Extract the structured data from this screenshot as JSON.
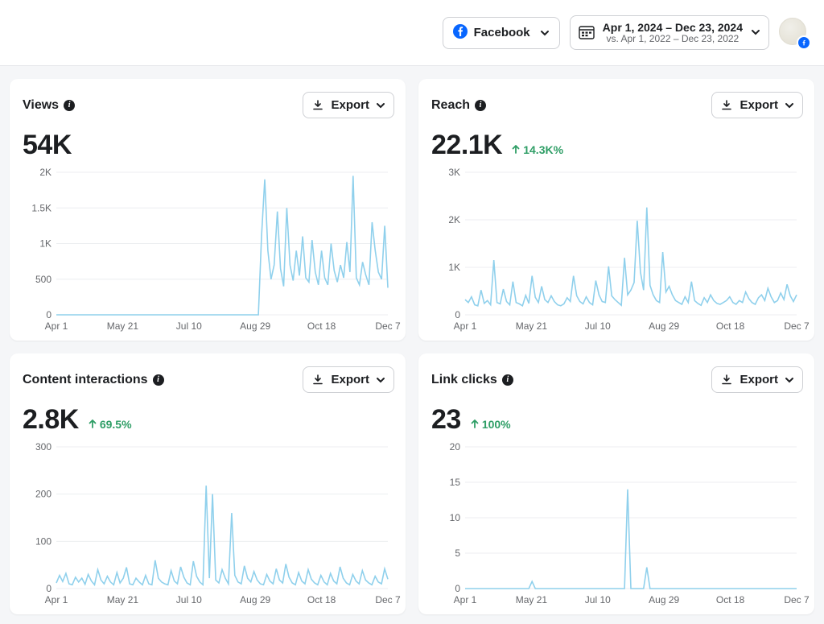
{
  "topbar": {
    "platform_label": "Facebook",
    "brand_color": "#0866ff",
    "date_primary": "Apr 1, 2024 – Dec 23, 2024",
    "date_secondary": "vs. Apr 1, 2022 – Dec 23, 2022"
  },
  "common": {
    "export_label": "Export",
    "text_muted": "#65676b",
    "card_bg": "#ffffff",
    "page_bg": "#f5f6f8",
    "border": "#ced0d4",
    "grid_color": "#eceef0",
    "line_color": "#8fd0ec",
    "delta_up_color": "#2f9e66",
    "x_ticks": [
      "Apr 1",
      "May 21",
      "Jul 10",
      "Aug 29",
      "Oct 18",
      "Dec 7"
    ]
  },
  "panels": [
    {
      "key": "views",
      "title": "Views",
      "metric": "54K",
      "delta": null,
      "y_ticks": [
        "0",
        "500",
        "1K",
        "1.5K",
        "2K"
      ],
      "ylim": [
        0,
        2000
      ],
      "series": [
        0,
        0,
        0,
        0,
        0,
        0,
        0,
        0,
        0,
        0,
        0,
        0,
        0,
        0,
        0,
        0,
        0,
        0,
        0,
        0,
        0,
        0,
        0,
        0,
        0,
        0,
        0,
        0,
        0,
        0,
        0,
        0,
        0,
        0,
        0,
        0,
        0,
        0,
        0,
        0,
        0,
        0,
        0,
        0,
        0,
        0,
        0,
        0,
        0,
        0,
        0,
        0,
        0,
        0,
        0,
        0,
        0,
        0,
        0,
        0,
        0,
        0,
        0,
        0,
        0,
        1100,
        1900,
        900,
        500,
        700,
        1450,
        650,
        400,
        1500,
        700,
        480,
        900,
        550,
        1100,
        520,
        460,
        1050,
        600,
        420,
        900,
        520,
        420,
        1000,
        620,
        460,
        700,
        520,
        1020,
        600,
        1950,
        520,
        420,
        740,
        560,
        420,
        1300,
        900,
        600,
        500,
        1250,
        380
      ]
    },
    {
      "key": "reach",
      "title": "Reach",
      "metric": "22.1K",
      "delta": "14.3K%",
      "y_ticks": [
        "0",
        "1K",
        "2K",
        "3K"
      ],
      "ylim": [
        0,
        3000
      ],
      "series": [
        320,
        260,
        380,
        210,
        190,
        520,
        240,
        300,
        210,
        1150,
        260,
        230,
        540,
        280,
        210,
        700,
        260,
        230,
        190,
        410,
        240,
        820,
        370,
        260,
        600,
        320,
        260,
        400,
        280,
        210,
        190,
        230,
        360,
        280,
        820,
        400,
        280,
        230,
        380,
        260,
        210,
        720,
        420,
        280,
        260,
        1020,
        400,
        320,
        260,
        200,
        1200,
        420,
        520,
        680,
        1980,
        900,
        520,
        2260,
        620,
        420,
        300,
        260,
        1320,
        480,
        600,
        420,
        300,
        260,
        220,
        380,
        260,
        700,
        300,
        240,
        200,
        360,
        260,
        420,
        300,
        240,
        220,
        260,
        300,
        380,
        260,
        220,
        300,
        260,
        480,
        340,
        260,
        220,
        360,
        420,
        300,
        560,
        380,
        260,
        300,
        460,
        320,
        640,
        400,
        280,
        420
      ]
    },
    {
      "key": "interactions",
      "title": "Content interactions",
      "metric": "2.8K",
      "delta": "69.5%",
      "y_ticks": [
        "0",
        "100",
        "200",
        "300"
      ],
      "ylim": [
        0,
        300
      ],
      "series": [
        12,
        28,
        15,
        32,
        10,
        8,
        24,
        14,
        22,
        9,
        30,
        16,
        8,
        40,
        18,
        10,
        26,
        14,
        8,
        34,
        12,
        22,
        45,
        10,
        8,
        22,
        14,
        8,
        28,
        10,
        8,
        60,
        22,
        14,
        10,
        8,
        38,
        16,
        10,
        46,
        24,
        12,
        8,
        58,
        26,
        14,
        8,
        218,
        22,
        200,
        18,
        12,
        40,
        22,
        10,
        160,
        28,
        14,
        10,
        48,
        22,
        14,
        36,
        18,
        10,
        8,
        30,
        16,
        10,
        42,
        18,
        12,
        52,
        24,
        12,
        8,
        34,
        16,
        10,
        40,
        20,
        12,
        8,
        28,
        14,
        8,
        32,
        16,
        10,
        46,
        22,
        12,
        8,
        30,
        16,
        10,
        38,
        18,
        12,
        8,
        26,
        14,
        10,
        42,
        20
      ]
    },
    {
      "key": "clicks",
      "title": "Link clicks",
      "metric": "23",
      "delta": "100%",
      "y_ticks": [
        "0",
        "5",
        "10",
        "15",
        "20"
      ],
      "ylim": [
        0,
        20
      ],
      "series": [
        0,
        0,
        0,
        0,
        0,
        0,
        0,
        0,
        0,
        0,
        0,
        0,
        0,
        0,
        0,
        0,
        0,
        0,
        0,
        0,
        0,
        1,
        0,
        0,
        0,
        0,
        0,
        0,
        0,
        0,
        0,
        0,
        0,
        0,
        0,
        0,
        0,
        0,
        0,
        0,
        0,
        0,
        0,
        0,
        0,
        0,
        0,
        0,
        0,
        0,
        0,
        14,
        0,
        0,
        0,
        0,
        0,
        3,
        0,
        0,
        0,
        0,
        0,
        0,
        0,
        0,
        0,
        0,
        0,
        0,
        0,
        0,
        0,
        0,
        0,
        0,
        0,
        0,
        0,
        0,
        0,
        0,
        0,
        0,
        0,
        0,
        0,
        0,
        0,
        0,
        0,
        0,
        0,
        0,
        0,
        0,
        0,
        0,
        0,
        0,
        0,
        0,
        0,
        0,
        0
      ]
    }
  ]
}
